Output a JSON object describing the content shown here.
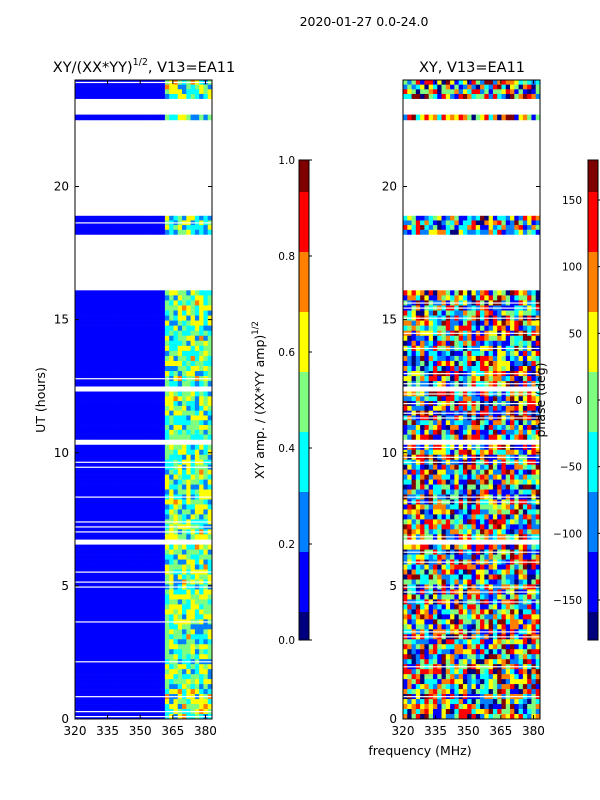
{
  "figure": {
    "suptitle": "2020-01-27 0.0-24.0",
    "xlabel_shared": "frequency (MHz)"
  },
  "colors": {
    "jet": [
      "#00007f",
      "#0000ff",
      "#007fff",
      "#00ffff",
      "#7fff7f",
      "#ffff00",
      "#ff7f00",
      "#ff0000",
      "#7f0000"
    ],
    "gap": "#ffffff"
  },
  "chart_data": [
    {
      "type": "heatmap",
      "title": "XY/(XX*YY)",
      "title_exp": "1/2",
      "title_suffix": ", V13=EA11",
      "xlabel": "",
      "ylabel": "UT (hours)",
      "xlim": [
        320,
        383
      ],
      "ylim": [
        0,
        24
      ],
      "xticks": [
        320,
        335,
        350,
        365,
        380
      ],
      "yticks": [
        0,
        5,
        10,
        15,
        20
      ],
      "colorbar": {
        "label": "XY amp. / (XX*YY amp)",
        "label_exp": "1/2",
        "range": [
          0.0,
          1.0
        ],
        "ticks": [
          0.0,
          0.2,
          0.4,
          0.6,
          0.8,
          1.0
        ],
        "tick_labels": [
          "0.0",
          "0.2",
          "0.4",
          "0.6",
          "0.8",
          "1.0"
        ]
      },
      "data_hours": [
        [
          0.0,
          6.55
        ],
        [
          6.75,
          10.3
        ],
        [
          10.5,
          12.3
        ],
        [
          12.5,
          16.1
        ],
        [
          18.2,
          18.9
        ],
        [
          22.5,
          22.7
        ],
        [
          23.3,
          24.0
        ]
      ],
      "pattern": "low amplitude (~0.1) across band, elevated 0.3-0.7 between 362 and 382 MHz"
    },
    {
      "type": "heatmap",
      "title": "XY, V13=EA11",
      "xlabel": "",
      "ylabel": "",
      "xlim": [
        320,
        383
      ],
      "ylim": [
        0,
        24
      ],
      "xticks": [
        320,
        335,
        350,
        365,
        380
      ],
      "yticks": [
        0,
        5,
        10,
        15,
        20
      ],
      "colorbar": {
        "label": "phase (deg)",
        "range": [
          -180,
          180
        ],
        "ticks": [
          -150,
          -100,
          -50,
          0,
          50,
          100,
          150
        ],
        "tick_labels": [
          "−150",
          "−100",
          "−50",
          "0",
          "50",
          "100",
          "150"
        ]
      },
      "data_hours": [
        [
          0.0,
          6.55
        ],
        [
          6.75,
          10.3
        ],
        [
          10.5,
          12.3
        ],
        [
          12.5,
          16.1
        ],
        [
          18.2,
          18.9
        ],
        [
          22.5,
          22.7
        ],
        [
          23.3,
          24.0
        ]
      ],
      "pattern": "noisy phase spanning full -180 to 180 range"
    }
  ]
}
